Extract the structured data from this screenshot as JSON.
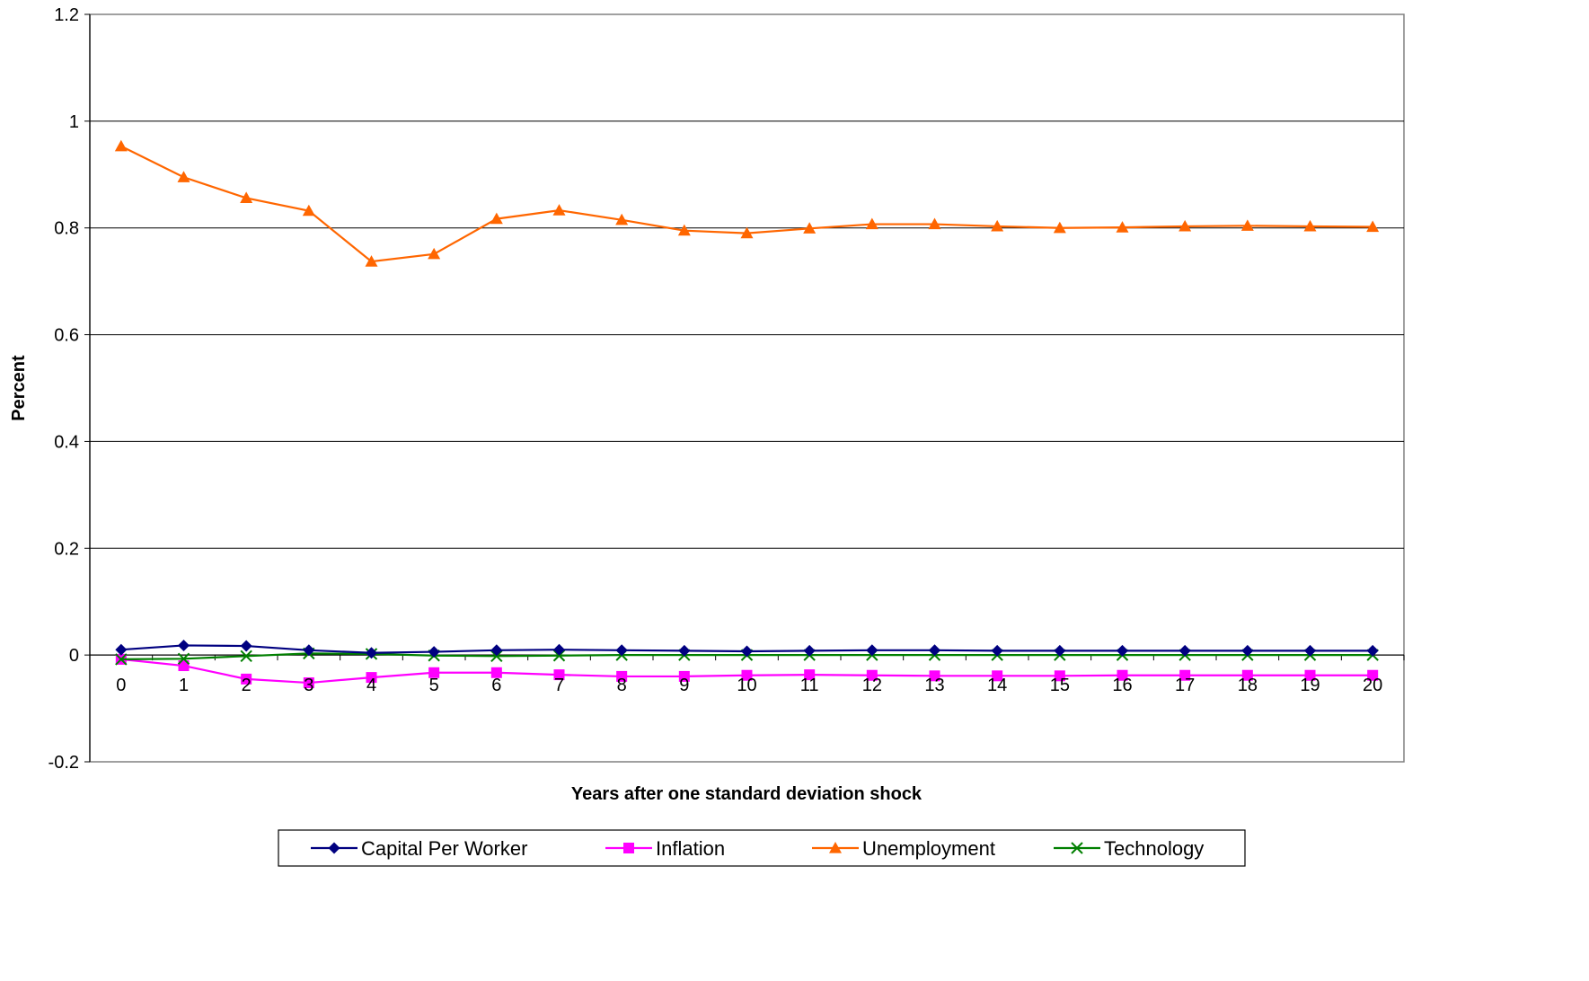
{
  "chart_data": {
    "type": "line",
    "title": "",
    "xlabel": "Years after one standard deviation shock",
    "ylabel": "Percent",
    "x": [
      0,
      1,
      2,
      3,
      4,
      5,
      6,
      7,
      8,
      9,
      10,
      11,
      12,
      13,
      14,
      15,
      16,
      17,
      18,
      19,
      20
    ],
    "x_tick_labels": [
      "0",
      "1",
      "2",
      "3",
      "4",
      "5",
      "6",
      "7",
      "8",
      "9",
      "10",
      "11",
      "12",
      "13",
      "14",
      "15",
      "16",
      "17",
      "18",
      "19",
      "20"
    ],
    "ylim": [
      -0.2,
      1.2
    ],
    "y_ticks": [
      -0.2,
      0,
      0.2,
      0.4,
      0.6,
      0.8,
      1,
      1.2
    ],
    "y_tick_labels": [
      "-0.2",
      "0",
      "0.2",
      "0.4",
      "0.6",
      "0.8",
      "1",
      "1.2"
    ],
    "grid": "horizontal",
    "legend_position": "bottom",
    "series": [
      {
        "name": "Capital Per Worker",
        "color": "#000080",
        "marker": "diamond",
        "values": [
          0.01,
          0.018,
          0.017,
          0.009,
          0.004,
          0.006,
          0.009,
          0.01,
          0.009,
          0.008,
          0.007,
          0.008,
          0.009,
          0.009,
          0.008,
          0.008,
          0.008,
          0.008,
          0.008,
          0.008,
          0.008
        ]
      },
      {
        "name": "Inflation",
        "color": "#ff00ff",
        "marker": "square",
        "values": [
          -0.008,
          -0.02,
          -0.045,
          -0.052,
          -0.042,
          -0.033,
          -0.033,
          -0.037,
          -0.04,
          -0.04,
          -0.038,
          -0.037,
          -0.038,
          -0.039,
          -0.039,
          -0.039,
          -0.038,
          -0.038,
          -0.038,
          -0.038,
          -0.038
        ]
      },
      {
        "name": "Unemployment",
        "color": "#ff6600",
        "marker": "triangle",
        "values": [
          0.953,
          0.895,
          0.856,
          0.832,
          0.737,
          0.751,
          0.817,
          0.833,
          0.815,
          0.795,
          0.79,
          0.799,
          0.807,
          0.807,
          0.803,
          0.8,
          0.801,
          0.803,
          0.804,
          0.803,
          0.802
        ]
      },
      {
        "name": "Technology",
        "color": "#007f00",
        "marker": "x",
        "values": [
          -0.008,
          -0.007,
          -0.002,
          0.003,
          0.002,
          -0.001,
          -0.002,
          -0.001,
          0.0,
          0.0,
          0.0,
          0.0,
          0.0,
          0.0,
          0.0,
          0.0,
          0.0,
          0.0,
          0.0,
          0.0,
          0.0
        ]
      }
    ]
  }
}
